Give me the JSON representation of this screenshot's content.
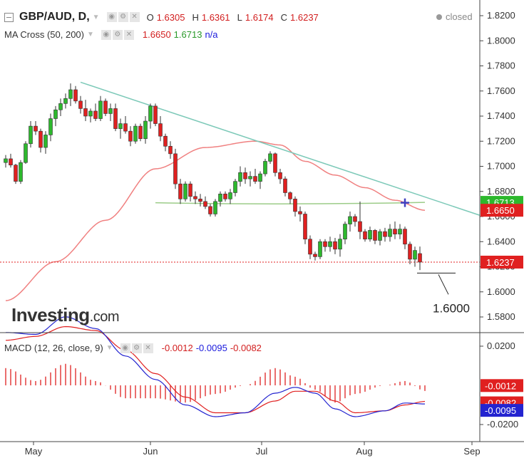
{
  "header": {
    "symbol": "GBP/AUD, D,",
    "ohlc": {
      "o_label": "O",
      "o": "1.6305",
      "h_label": "H",
      "h": "1.6361",
      "l_label": "L",
      "l": "1.6174",
      "c_label": "C",
      "c": "1.6237"
    },
    "status": "closed"
  },
  "ma_legend": {
    "label": "MA Cross (50, 200)",
    "v1": "1.6650",
    "v2": "1.6713",
    "v3": "n/a"
  },
  "macd_legend": {
    "label": "MACD (12, 26, close, 9)",
    "v1": "-0.0012",
    "v2": "-0.0095",
    "v3": "-0.0082"
  },
  "logo": {
    "name": "Investing",
    "suffix": ".com"
  },
  "annotation": "1.6000",
  "colors": {
    "up": "#2db82d",
    "down": "#e02020",
    "trend": "#7cc9b8",
    "ma_fast": "#f08080",
    "ma_slow": "#9ccc88",
    "macd": "#2424d0",
    "signal": "#e02020",
    "hist": "#e03030",
    "price_line": "#e02020"
  },
  "chart_data": [
    {
      "type": "candlestick",
      "title": "GBP/AUD, D",
      "x_ticks": [
        "May",
        "Jun",
        "Jul",
        "Aug",
        "Sep"
      ],
      "y_ticks": [
        "1.8200",
        "1.8000",
        "1.7800",
        "1.7600",
        "1.7400",
        "1.7200",
        "1.7000",
        "1.6800",
        "1.6600",
        "1.6400",
        "1.6200",
        "1.6000",
        "1.5800"
      ],
      "ylim": [
        1.565,
        1.832
      ],
      "price_labels": [
        {
          "value": "1.6713",
          "color": "#2db82d"
        },
        {
          "value": "1.6650",
          "color": "#e02020"
        },
        {
          "value": "1.6237",
          "color": "#e02020"
        }
      ],
      "ohlc": [
        [
          1.703,
          1.709,
          1.699,
          1.706
        ],
        [
          1.706,
          1.71,
          1.699,
          1.701
        ],
        [
          1.701,
          1.702,
          1.686,
          1.688
        ],
        [
          1.688,
          1.705,
          1.686,
          1.703
        ],
        [
          1.703,
          1.72,
          1.702,
          1.718
        ],
        [
          1.718,
          1.736,
          1.715,
          1.732
        ],
        [
          1.732,
          1.736,
          1.725,
          1.728
        ],
        [
          1.728,
          1.73,
          1.711,
          1.715
        ],
        [
          1.715,
          1.728,
          1.71,
          1.725
        ],
        [
          1.725,
          1.742,
          1.72,
          1.738
        ],
        [
          1.738,
          1.748,
          1.732,
          1.745
        ],
        [
          1.745,
          1.754,
          1.74,
          1.75
        ],
        [
          1.75,
          1.758,
          1.746,
          1.754
        ],
        [
          1.754,
          1.766,
          1.748,
          1.761
        ],
        [
          1.761,
          1.764,
          1.75,
          1.752
        ],
        [
          1.752,
          1.756,
          1.742,
          1.746
        ],
        [
          1.746,
          1.753,
          1.736,
          1.74
        ],
        [
          1.74,
          1.746,
          1.735,
          1.744
        ],
        [
          1.744,
          1.75,
          1.736,
          1.738
        ],
        [
          1.738,
          1.756,
          1.736,
          1.752
        ],
        [
          1.752,
          1.754,
          1.74,
          1.742
        ],
        [
          1.742,
          1.75,
          1.736,
          1.746
        ],
        [
          1.746,
          1.75,
          1.728,
          1.73
        ],
        [
          1.73,
          1.738,
          1.722,
          1.734
        ],
        [
          1.734,
          1.74,
          1.726,
          1.728
        ],
        [
          1.728,
          1.732,
          1.716,
          1.72
        ],
        [
          1.72,
          1.734,
          1.718,
          1.732
        ],
        [
          1.732,
          1.734,
          1.72,
          1.722
        ],
        [
          1.722,
          1.74,
          1.718,
          1.736
        ],
        [
          1.736,
          1.75,
          1.73,
          1.748
        ],
        [
          1.748,
          1.75,
          1.732,
          1.734
        ],
        [
          1.734,
          1.74,
          1.72,
          1.724
        ],
        [
          1.724,
          1.726,
          1.712,
          1.716
        ],
        [
          1.716,
          1.72,
          1.706,
          1.71
        ],
        [
          1.71,
          1.714,
          1.682,
          1.686
        ],
        [
          1.686,
          1.69,
          1.67,
          1.674
        ],
        [
          1.674,
          1.688,
          1.672,
          1.686
        ],
        [
          1.686,
          1.688,
          1.672,
          1.676
        ],
        [
          1.676,
          1.68,
          1.67,
          1.674
        ],
        [
          1.674,
          1.678,
          1.668,
          1.672
        ],
        [
          1.672,
          1.676,
          1.666,
          1.668
        ],
        [
          1.668,
          1.67,
          1.66,
          1.662
        ],
        [
          1.662,
          1.674,
          1.66,
          1.672
        ],
        [
          1.672,
          1.68,
          1.668,
          1.678
        ],
        [
          1.678,
          1.68,
          1.672,
          1.674
        ],
        [
          1.674,
          1.682,
          1.67,
          1.679
        ],
        [
          1.679,
          1.69,
          1.676,
          1.688
        ],
        [
          1.688,
          1.7,
          1.684,
          1.695
        ],
        [
          1.695,
          1.699,
          1.686,
          1.69
        ],
        [
          1.69,
          1.696,
          1.684,
          1.692
        ],
        [
          1.692,
          1.698,
          1.686,
          1.688
        ],
        [
          1.688,
          1.696,
          1.682,
          1.694
        ],
        [
          1.694,
          1.706,
          1.692,
          1.704
        ],
        [
          1.704,
          1.712,
          1.702,
          1.71
        ],
        [
          1.71,
          1.711,
          1.692,
          1.695
        ],
        [
          1.695,
          1.698,
          1.686,
          1.69
        ],
        [
          1.69,
          1.692,
          1.676,
          1.679
        ],
        [
          1.679,
          1.68,
          1.67,
          1.674
        ],
        [
          1.674,
          1.676,
          1.66,
          1.664
        ],
        [
          1.664,
          1.668,
          1.656,
          1.662
        ],
        [
          1.662,
          1.664,
          1.638,
          1.642
        ],
        [
          1.642,
          1.645,
          1.626,
          1.63
        ],
        [
          1.63,
          1.632,
          1.625,
          1.628
        ],
        [
          1.628,
          1.642,
          1.626,
          1.64
        ],
        [
          1.64,
          1.642,
          1.632,
          1.636
        ],
        [
          1.636,
          1.644,
          1.632,
          1.64
        ],
        [
          1.64,
          1.643,
          1.63,
          1.634
        ],
        [
          1.634,
          1.646,
          1.628,
          1.642
        ],
        [
          1.642,
          1.656,
          1.638,
          1.654
        ],
        [
          1.654,
          1.664,
          1.648,
          1.66
        ],
        [
          1.66,
          1.662,
          1.652,
          1.656
        ],
        [
          1.656,
          1.672,
          1.642,
          1.648
        ],
        [
          1.648,
          1.65,
          1.64,
          1.642
        ],
        [
          1.642,
          1.652,
          1.64,
          1.649
        ],
        [
          1.649,
          1.65,
          1.638,
          1.641
        ],
        [
          1.641,
          1.65,
          1.637,
          1.648
        ],
        [
          1.648,
          1.651,
          1.64,
          1.644
        ],
        [
          1.644,
          1.654,
          1.64,
          1.65
        ],
        [
          1.65,
          1.656,
          1.642,
          1.646
        ],
        [
          1.646,
          1.654,
          1.642,
          1.65
        ],
        [
          1.65,
          1.652,
          1.634,
          1.638
        ],
        [
          1.638,
          1.64,
          1.622,
          1.626
        ],
        [
          1.626,
          1.636,
          1.62,
          1.633
        ],
        [
          1.6305,
          1.6361,
          1.6174,
          1.6237
        ]
      ],
      "ma_fast_knots": [
        [
          0,
          1.593
        ],
        [
          10,
          1.624
        ],
        [
          20,
          1.657
        ],
        [
          30,
          1.698
        ],
        [
          40,
          1.715
        ],
        [
          50,
          1.72
        ],
        [
          55,
          1.717
        ],
        [
          60,
          1.704
        ],
        [
          66,
          1.693
        ],
        [
          72,
          1.683
        ],
        [
          78,
          1.673
        ],
        [
          84,
          1.665
        ]
      ],
      "ma_slow": {
        "from": 30,
        "to": 84,
        "start": 1.671,
        "end": 1.6713
      },
      "trendline": [
        [
          15,
          1.767
        ],
        [
          95,
          1.661
        ]
      ],
      "annotation_level": 1.615
    },
    {
      "type": "line",
      "title": "MACD (12, 26, close, 9)",
      "y_ticks": [
        "0.0200",
        "-0.0200"
      ],
      "price_labels": [
        {
          "value": "-0.0012",
          "color": "#e02020"
        },
        {
          "value": "-0.0082",
          "color": "#e02020"
        },
        {
          "value": "-0.0095",
          "color": "#2424d0"
        }
      ],
      "macd_knots": [
        [
          0,
          0.027
        ],
        [
          6,
          0.026
        ],
        [
          12,
          0.035
        ],
        [
          18,
          0.029
        ],
        [
          24,
          0.015
        ],
        [
          30,
          0.003
        ],
        [
          36,
          -0.01
        ],
        [
          42,
          -0.016
        ],
        [
          48,
          -0.014
        ],
        [
          54,
          -0.004
        ],
        [
          58,
          -0.001
        ],
        [
          62,
          -0.004
        ],
        [
          66,
          -0.012
        ],
        [
          70,
          -0.016
        ],
        [
          76,
          -0.013
        ],
        [
          80,
          -0.009
        ],
        [
          84,
          -0.0095
        ]
      ],
      "signal_knots": [
        [
          0,
          0.023
        ],
        [
          6,
          0.025
        ],
        [
          12,
          0.03
        ],
        [
          18,
          0.028
        ],
        [
          24,
          0.018
        ],
        [
          30,
          0.006
        ],
        [
          36,
          -0.006
        ],
        [
          42,
          -0.014
        ],
        [
          48,
          -0.014
        ],
        [
          54,
          -0.008
        ],
        [
          58,
          -0.003
        ],
        [
          62,
          -0.003
        ],
        [
          66,
          -0.008
        ],
        [
          70,
          -0.014
        ],
        [
          76,
          -0.013
        ],
        [
          80,
          -0.01
        ],
        [
          84,
          -0.0082
        ]
      ]
    }
  ]
}
